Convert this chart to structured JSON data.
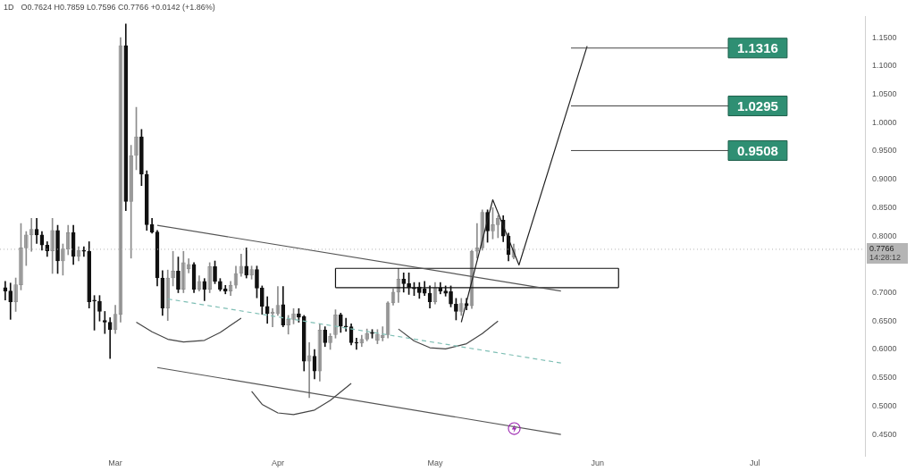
{
  "chart_data": {
    "type": "candlestick",
    "title": "1D",
    "subtitle": "O0.7624 H0.7859 L0.7596 C0.7766 +0.0142 (+1.86%)",
    "x": [
      "--02-08",
      "--02-09",
      "--02-10",
      "--02-11",
      "--02-12",
      "--02-13",
      "--02-14",
      "--02-15",
      "--02-16",
      "--02-17",
      "--02-18",
      "--02-19",
      "--02-20",
      "--02-21",
      "--02-22",
      "--02-23",
      "--02-24",
      "--02-25",
      "--02-26",
      "--02-27",
      "--02-28",
      "--03-01",
      "--03-02",
      "--03-03",
      "--03-04",
      "--03-05",
      "--03-06",
      "--03-07",
      "--03-08",
      "--03-09",
      "--03-10",
      "--03-11",
      "--03-12",
      "--03-13",
      "--03-14",
      "--03-15",
      "--03-16",
      "--03-17",
      "--03-18",
      "--03-19",
      "--03-20",
      "--03-21",
      "--03-22",
      "--03-23",
      "--03-24",
      "--03-25",
      "--03-26",
      "--03-27",
      "--03-28",
      "--03-29",
      "--03-30",
      "--03-31",
      "--04-01",
      "--04-02",
      "--04-03",
      "--04-04",
      "--04-05",
      "--04-06",
      "--04-07",
      "--04-08",
      "--04-09",
      "--04-10",
      "--04-11",
      "--04-12",
      "--04-13",
      "--04-14",
      "--04-15",
      "--04-16",
      "--04-17",
      "--04-18",
      "--04-19",
      "--04-20",
      "--04-21",
      "--04-22",
      "--04-23",
      "--04-24",
      "--04-25",
      "--04-26",
      "--04-27",
      "--04-28",
      "--04-29",
      "--04-30",
      "--05-01",
      "--05-02",
      "--05-03",
      "--05-04",
      "--05-05",
      "--05-06",
      "--05-07",
      "--05-08",
      "--05-09",
      "--05-10",
      "--05-11",
      "--05-12",
      "--05-13",
      "--05-14",
      "--05-15",
      "--05-16"
    ],
    "ohlc": [
      [
        0.709,
        0.72,
        0.687,
        0.703
      ],
      [
        0.703,
        0.717,
        0.653,
        0.684
      ],
      [
        0.684,
        0.726,
        0.667,
        0.714
      ],
      [
        0.714,
        0.822,
        0.705,
        0.779
      ],
      [
        0.779,
        0.808,
        0.748,
        0.802
      ],
      [
        0.802,
        0.831,
        0.773,
        0.812
      ],
      [
        0.812,
        0.831,
        0.787,
        0.802
      ],
      [
        0.802,
        0.808,
        0.775,
        0.784
      ],
      [
        0.784,
        0.79,
        0.764,
        0.774
      ],
      [
        0.774,
        0.831,
        0.734,
        0.81
      ],
      [
        0.81,
        0.819,
        0.734,
        0.756
      ],
      [
        0.756,
        0.786,
        0.731,
        0.777
      ],
      [
        0.777,
        0.819,
        0.767,
        0.806
      ],
      [
        0.806,
        0.819,
        0.75,
        0.764
      ],
      [
        0.764,
        0.781,
        0.756,
        0.775
      ],
      [
        0.775,
        0.781,
        0.764,
        0.773
      ],
      [
        0.773,
        0.79,
        0.673,
        0.684
      ],
      [
        0.687,
        0.695,
        0.634,
        0.685
      ],
      [
        0.685,
        0.695,
        0.65,
        0.667
      ],
      [
        0.651,
        0.667,
        0.628,
        0.648
      ],
      [
        0.648,
        0.656,
        0.584,
        0.635
      ],
      [
        0.635,
        0.678,
        0.628,
        0.662
      ],
      [
        0.662,
        1.15,
        0.648,
        1.136
      ],
      [
        1.136,
        1.174,
        0.845,
        0.861
      ],
      [
        0.861,
        0.96,
        0.761,
        0.942
      ],
      [
        0.942,
        1.027,
        0.917,
        0.975
      ],
      [
        0.975,
        0.988,
        0.889,
        0.909
      ],
      [
        0.909,
        0.915,
        0.81,
        0.82
      ],
      [
        0.82,
        0.831,
        0.805,
        0.807
      ],
      [
        0.807,
        0.81,
        0.712,
        0.726
      ],
      [
        0.726,
        0.739,
        0.66,
        0.673
      ],
      [
        0.673,
        0.74,
        0.651,
        0.726
      ],
      [
        0.726,
        0.773,
        0.712,
        0.738
      ],
      [
        0.738,
        0.763,
        0.7,
        0.706
      ],
      [
        0.706,
        0.773,
        0.7,
        0.753
      ],
      [
        0.742,
        0.76,
        0.735,
        0.75
      ],
      [
        0.75,
        0.753,
        0.7,
        0.706
      ],
      [
        0.706,
        0.73,
        0.703,
        0.72
      ],
      [
        0.72,
        0.725,
        0.686,
        0.706
      ],
      [
        0.706,
        0.753,
        0.7,
        0.746
      ],
      [
        0.746,
        0.756,
        0.716,
        0.72
      ],
      [
        0.72,
        0.725,
        0.703,
        0.706
      ],
      [
        0.707,
        0.713,
        0.698,
        0.703
      ],
      [
        0.703,
        0.72,
        0.695,
        0.713
      ],
      [
        0.713,
        0.747,
        0.708,
        0.734
      ],
      [
        0.734,
        0.768,
        0.729,
        0.747
      ],
      [
        0.747,
        0.779,
        0.726,
        0.731
      ],
      [
        0.731,
        0.747,
        0.724,
        0.741
      ],
      [
        0.741,
        0.747,
        0.691,
        0.708
      ],
      [
        0.708,
        0.712,
        0.662,
        0.676
      ],
      [
        0.676,
        0.693,
        0.646,
        0.663
      ],
      [
        0.663,
        0.672,
        0.64,
        0.666
      ],
      [
        0.663,
        0.711,
        0.66,
        0.678
      ],
      [
        0.679,
        0.711,
        0.64,
        0.643
      ],
      [
        0.643,
        0.66,
        0.627,
        0.653
      ],
      [
        0.653,
        0.672,
        0.645,
        0.663
      ],
      [
        0.663,
        0.672,
        0.648,
        0.657
      ],
      [
        0.658,
        0.66,
        0.562,
        0.579
      ],
      [
        0.579,
        0.612,
        0.515,
        0.589
      ],
      [
        0.588,
        0.6,
        0.548,
        0.562
      ],
      [
        0.562,
        0.645,
        0.544,
        0.634
      ],
      [
        0.634,
        0.64,
        0.605,
        0.612
      ],
      [
        0.612,
        0.628,
        0.6,
        0.623
      ],
      [
        0.626,
        0.67,
        0.62,
        0.661
      ],
      [
        0.661,
        0.664,
        0.63,
        0.641
      ],
      [
        0.641,
        0.655,
        0.632,
        0.64
      ],
      [
        0.64,
        0.645,
        0.608,
        0.612
      ],
      [
        0.612,
        0.62,
        0.6,
        0.611
      ],
      [
        0.611,
        0.625,
        0.605,
        0.618
      ],
      [
        0.618,
        0.636,
        0.615,
        0.628
      ],
      [
        0.63,
        0.635,
        0.62,
        0.628
      ],
      [
        0.616,
        0.635,
        0.61,
        0.627
      ],
      [
        0.621,
        0.64,
        0.615,
        0.625
      ],
      [
        0.626,
        0.684,
        0.62,
        0.682
      ],
      [
        0.682,
        0.707,
        0.678,
        0.701
      ],
      [
        0.701,
        0.743,
        0.683,
        0.724
      ],
      [
        0.724,
        0.735,
        0.701,
        0.716
      ],
      [
        0.716,
        0.735,
        0.697,
        0.709
      ],
      [
        0.709,
        0.718,
        0.695,
        0.707
      ],
      [
        0.71,
        0.718,
        0.69,
        0.7
      ],
      [
        0.707,
        0.72,
        0.695,
        0.699
      ],
      [
        0.699,
        0.712,
        0.673,
        0.684
      ],
      [
        0.684,
        0.718,
        0.68,
        0.709
      ],
      [
        0.709,
        0.718,
        0.698,
        0.703
      ],
      [
        0.703,
        0.712,
        0.694,
        0.699
      ],
      [
        0.702,
        0.712,
        0.675,
        0.68
      ],
      [
        0.68,
        0.69,
        0.652,
        0.667
      ],
      [
        0.667,
        0.69,
        0.66,
        0.681
      ],
      [
        0.681,
        0.69,
        0.67,
        0.677
      ],
      [
        0.677,
        0.775,
        0.672,
        0.773
      ],
      [
        0.773,
        0.822,
        0.761,
        0.779
      ],
      [
        0.779,
        0.846,
        0.775,
        0.842
      ],
      [
        0.842,
        0.846,
        0.789,
        0.809
      ],
      [
        0.809,
        0.85,
        0.795,
        0.82
      ],
      [
        0.82,
        0.836,
        0.797,
        0.831
      ],
      [
        0.828,
        0.836,
        0.79,
        0.8
      ],
      [
        0.8,
        0.805,
        0.756,
        0.767
      ],
      [
        0.7624,
        0.7859,
        0.7596,
        0.7766
      ]
    ],
    "series": [
      {
        "type": "line",
        "color": "#555555",
        "line_style": "solid",
        "x": [
          "--03-09",
          "--05-25"
        ],
        "values": [
          0.819,
          0.703
        ]
      },
      {
        "type": "line",
        "color": "#555555",
        "line_style": "solid",
        "x": [
          "--03-09",
          "--05-25"
        ],
        "values": [
          0.568,
          0.45
        ]
      },
      {
        "type": "line",
        "color": "#7fbfb5",
        "line_style": "dashed",
        "x": [
          "--03-11",
          "--05-25"
        ],
        "values": [
          0.689,
          0.576
        ]
      },
      {
        "type": "line",
        "color": "#444444",
        "line_style": "solid",
        "x": [
          "--03-05",
          "--03-08",
          "--03-11",
          "--03-14",
          "--03-18",
          "--03-21",
          "--03-25"
        ],
        "values": [
          0.648,
          0.631,
          0.618,
          0.613,
          0.616,
          0.63,
          0.655
        ]
      },
      {
        "type": "line",
        "color": "#444444",
        "line_style": "solid",
        "x": [
          "--03-27",
          "--03-29",
          "--04-01",
          "--04-04",
          "--04-08",
          "--04-11",
          "--04-15"
        ],
        "values": [
          0.526,
          0.503,
          0.488,
          0.485,
          0.493,
          0.51,
          0.54
        ]
      },
      {
        "type": "line",
        "color": "#444444",
        "line_style": "solid",
        "x": [
          "--04-24",
          "--04-27",
          "--04-30",
          "--05-03",
          "--05-07",
          "--05-10",
          "--05-13"
        ],
        "values": [
          0.636,
          0.615,
          0.603,
          0.601,
          0.61,
          0.628,
          0.65
        ]
      },
      {
        "type": "line",
        "color": "#111111",
        "line_style": "solid",
        "x": [
          "--04-12",
          "--06-05"
        ],
        "values": [
          0.743,
          0.743
        ]
      },
      {
        "type": "line",
        "color": "#111111",
        "line_style": "solid",
        "x": [
          "--04-12",
          "--06-05"
        ],
        "values": [
          0.709,
          0.709
        ]
      },
      {
        "type": "line",
        "color": "#111111",
        "line_style": "solid",
        "x": [
          "--04-12",
          "--04-12"
        ],
        "values": [
          0.709,
          0.743
        ]
      },
      {
        "type": "line",
        "color": "#111111",
        "line_style": "solid",
        "x": [
          "--06-05",
          "--06-05"
        ],
        "values": [
          0.709,
          0.743
        ]
      },
      {
        "type": "line",
        "color": "#222222",
        "line_style": "solid",
        "x": [
          "--05-06",
          "--05-12",
          "--05-17",
          "--05-30"
        ],
        "values": [
          0.648,
          0.864,
          0.749,
          1.135
        ]
      }
    ],
    "xlim": [
      "--02-07",
      "--07-22"
    ],
    "xticks": [
      {
        "value": "--03-01",
        "label": "Mar"
      },
      {
        "value": "--04-01",
        "label": "Apr"
      },
      {
        "value": "--05-01",
        "label": "May"
      },
      {
        "value": "--06-01",
        "label": "Jun"
      },
      {
        "value": "--07-01",
        "label": "Jul"
      }
    ],
    "ylim": [
      0.412,
      1.188
    ],
    "yticks": [
      {
        "value": 0.45,
        "label": "0.4500"
      },
      {
        "value": 0.5,
        "label": "0.5000"
      },
      {
        "value": 0.55,
        "label": "0.5500"
      },
      {
        "value": 0.6,
        "label": "0.6000"
      },
      {
        "value": 0.65,
        "label": "0.6500"
      },
      {
        "value": 0.7,
        "label": "0.7000"
      },
      {
        "value": 0.8,
        "label": "0.8000"
      },
      {
        "value": 0.85,
        "label": "0.8500"
      },
      {
        "value": 0.9,
        "label": "0.9000"
      },
      {
        "value": 0.95,
        "label": "0.9500"
      },
      {
        "value": 1.0,
        "label": "1.0000"
      },
      {
        "value": 1.05,
        "label": "1.0500"
      },
      {
        "value": 1.1,
        "label": "1.1000"
      },
      {
        "value": 1.15,
        "label": "1.1500"
      }
    ],
    "ref_lines": [
      {
        "axis": "y",
        "value": 0.7766,
        "label": "0.7766",
        "color": "#b5b5b5",
        "line_style": "dotted"
      },
      {
        "axis": "y",
        "value": 0.9508,
        "label": "0.9508",
        "color": "#444444",
        "line_style": "solid"
      },
      {
        "axis": "y",
        "value": 1.0295,
        "label": "1.0295",
        "color": "#444444",
        "line_style": "solid"
      },
      {
        "axis": "y",
        "value": 1.1316,
        "label": "1.1316",
        "color": "#444444",
        "line_style": "solid"
      }
    ],
    "annotations": [
      "14:28:12"
    ],
    "legend": false,
    "grid": false
  }
}
